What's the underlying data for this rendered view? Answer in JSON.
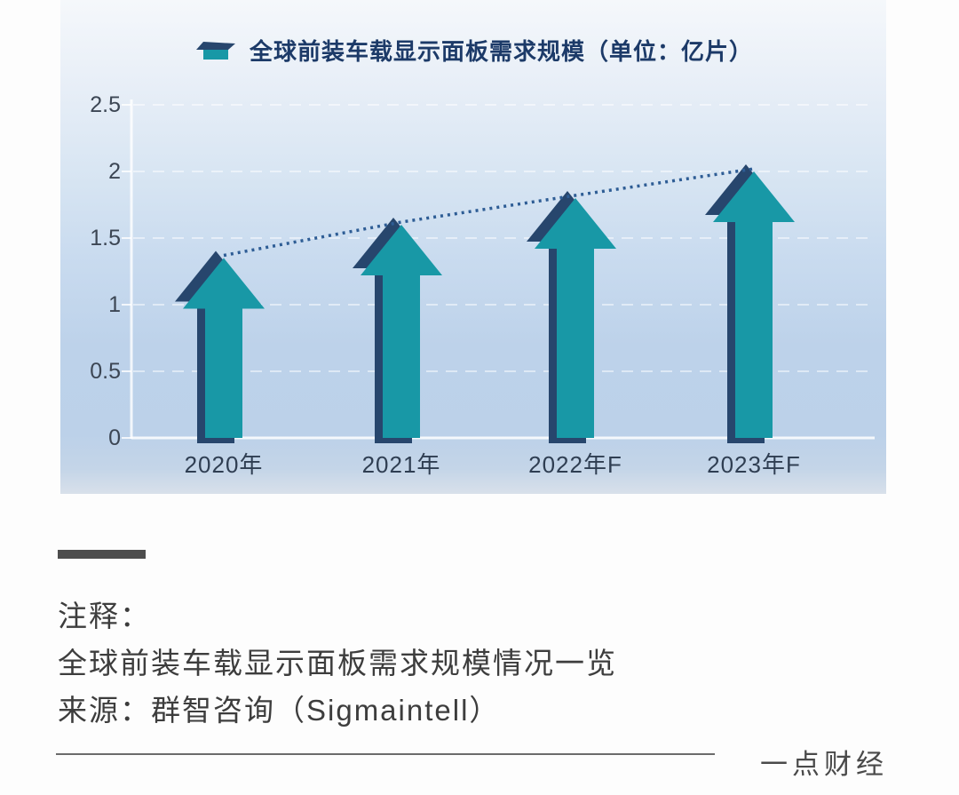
{
  "chart": {
    "legend_label": "全球前装车载显示面板需求规模（单位：亿片）"
  },
  "chart_data": {
    "type": "bar",
    "bar_style": "3d-up-arrow",
    "title": "全球前装车载显示面板需求规模（单位：亿片）",
    "categories": [
      "2020年",
      "2021年",
      "2022年F",
      "2023年F"
    ],
    "values": [
      1.35,
      1.6,
      1.8,
      2.0
    ],
    "unit": "亿片",
    "xlabel": "",
    "ylabel": "",
    "ylim": [
      0,
      2.5
    ],
    "y_tick_step": 0.5,
    "grid": "faint white dashed horizontal gridlines",
    "legend_position": "top",
    "trendline": "dotted navy line connecting arrow tips",
    "colors": {
      "arrow": "#1898a6",
      "arrow_edge": "#27466d",
      "trendline": "#2e5d95",
      "axis_line": "rgba(255,255,255,0.8)",
      "gridline": "rgba(255,255,255,0.5)",
      "axis_text": "#3c4654",
      "category_text": "#2f3e52",
      "title_text": "#1c3a68"
    }
  },
  "footer": {
    "note_label": "注释：",
    "note_line": "全球前装车载显示面板需求规模情况一览",
    "source_line": "来源：群智咨询（Sigmaintell）",
    "brand": "一点财经"
  }
}
